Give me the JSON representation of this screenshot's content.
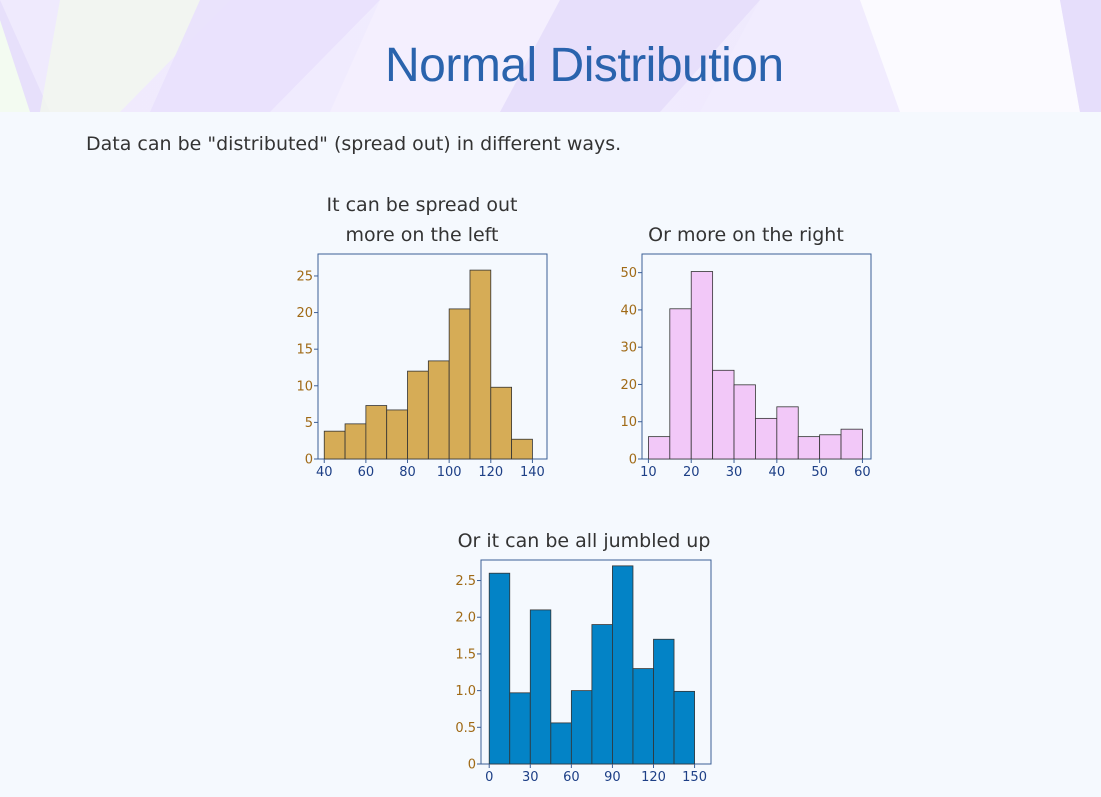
{
  "header": {
    "title": "Normal Distribution"
  },
  "intro_text": "Data can be \"distributed\" (spread out) in different ways.",
  "chart_data": [
    {
      "type": "bar",
      "title": "It can be spread out more on the left",
      "title_lines": [
        "It can be spread out",
        "more on the left"
      ],
      "bin_edges": [
        40,
        50,
        60,
        70,
        80,
        90,
        100,
        110,
        120,
        130,
        140
      ],
      "values": [
        3.8,
        4.8,
        7.3,
        6.7,
        12,
        13.4,
        20.5,
        25.8,
        9.8,
        2.7
      ],
      "xlim": [
        37,
        147
      ],
      "ylim": [
        0,
        28
      ],
      "x_ticks": [
        40,
        60,
        80,
        100,
        120,
        140
      ],
      "y_ticks": [
        0,
        5,
        10,
        15,
        20,
        25
      ],
      "bar_color": "#d6ac56",
      "grid": false
    },
    {
      "type": "bar",
      "title": "Or more on the right",
      "title_lines": [
        "Or more on the right"
      ],
      "bin_edges": [
        10,
        15,
        20,
        25,
        30,
        35,
        40,
        45,
        50,
        55,
        60
      ],
      "values": [
        6,
        40.3,
        50.3,
        23.8,
        19.9,
        10.9,
        14,
        6,
        6.5,
        8
      ],
      "xlim": [
        8.5,
        62
      ],
      "ylim": [
        0,
        55
      ],
      "x_ticks": [
        10,
        20,
        30,
        40,
        50,
        60
      ],
      "y_ticks": [
        0,
        10,
        20,
        30,
        40,
        50
      ],
      "bar_color": "#f2c8f8",
      "grid": false
    },
    {
      "type": "bar",
      "title": "Or it can be all jumbled up",
      "title_lines": [
        "Or it can be all jumbled up"
      ],
      "bin_edges": [
        0,
        15,
        30,
        45,
        60,
        75,
        90,
        105,
        120,
        135,
        150
      ],
      "values": [
        2.6,
        0.97,
        2.1,
        0.56,
        1.0,
        1.9,
        2.7,
        1.3,
        1.7,
        0.99
      ],
      "xlim": [
        -6,
        162
      ],
      "ylim": [
        0,
        2.78
      ],
      "x_ticks": [
        0,
        30,
        60,
        90,
        120,
        150
      ],
      "y_ticks": [
        0,
        0.5,
        1.0,
        1.5,
        2.0,
        2.5
      ],
      "y_tick_labels": [
        "0",
        "0.5",
        "1.0",
        "1.5",
        "2.0",
        "2.5"
      ],
      "bar_color": "#0383c6",
      "grid": false
    }
  ]
}
